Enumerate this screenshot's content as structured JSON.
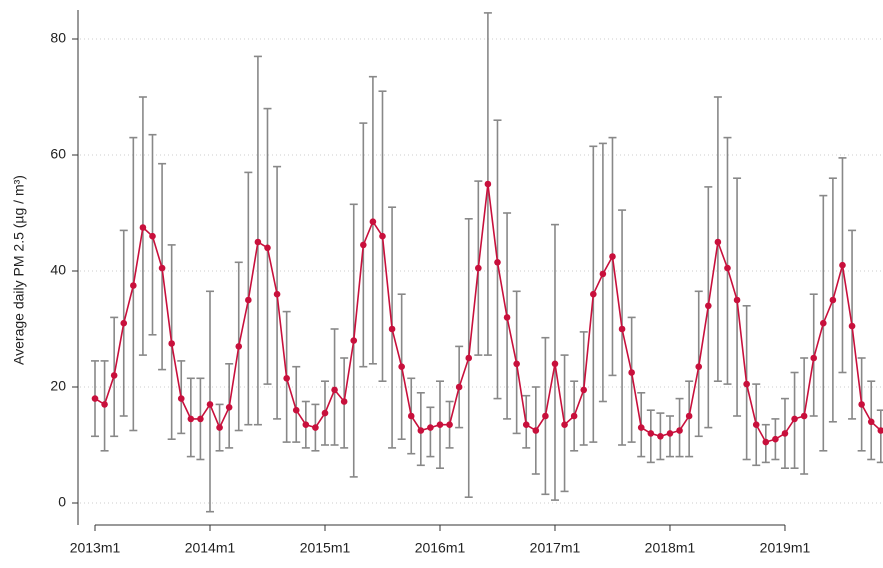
{
  "chart_data": {
    "type": "line",
    "y_label": "Average daily PM 2.5 (µg / m³)",
    "categories": [
      "2013m1",
      null,
      null,
      null,
      null,
      null,
      null,
      null,
      null,
      null,
      null,
      null,
      "2014m1",
      null,
      null,
      null,
      null,
      null,
      null,
      null,
      null,
      null,
      null,
      null,
      "2015m1",
      null,
      null,
      null,
      null,
      null,
      null,
      null,
      null,
      null,
      null,
      null,
      "2016m1",
      null,
      null,
      null,
      null,
      null,
      null,
      null,
      null,
      null,
      null,
      null,
      "2017m1",
      null,
      null,
      null,
      null,
      null,
      null,
      null,
      null,
      null,
      null,
      null,
      "2018m1",
      null,
      null,
      null,
      null,
      null,
      null,
      null,
      null,
      null,
      null,
      null,
      "2019m1",
      null,
      null,
      null,
      null,
      null,
      null,
      null,
      null,
      null,
      null
    ],
    "values": [
      18,
      17,
      22,
      31,
      37.5,
      47.5,
      46,
      40.5,
      27.5,
      18,
      14.5,
      14.5,
      17,
      13,
      16.5,
      27,
      35,
      45,
      44,
      36,
      21.5,
      16,
      13.5,
      13,
      15.5,
      19.5,
      17.5,
      28,
      44.5,
      48.5,
      46,
      30,
      23.5,
      15,
      12.5,
      13,
      13.5,
      13.5,
      20,
      25,
      40.5,
      55,
      41.5,
      32,
      24,
      13.5,
      12.5,
      15,
      24,
      13.5,
      15,
      19.5,
      36,
      39.5,
      42.5,
      30,
      22.5,
      13,
      12,
      11.5,
      12,
      12.5,
      15,
      23.5,
      34,
      45,
      40.5,
      35,
      20.5,
      13.5,
      10.5,
      11,
      12,
      14.5,
      15,
      25,
      31,
      35,
      41,
      30.5,
      17,
      14,
      12.5
    ],
    "error_low": [
      11.5,
      9,
      11.5,
      15,
      12.5,
      25.5,
      29,
      23,
      11,
      12,
      8,
      7.5,
      -1.5,
      9,
      9.5,
      12.5,
      13.5,
      13.5,
      20.5,
      14.5,
      10.5,
      10.5,
      9.5,
      9,
      10,
      10,
      9.5,
      4.5,
      23.5,
      24,
      21,
      9.5,
      11,
      8.5,
      6.5,
      8,
      6,
      9.5,
      13,
      1,
      25.5,
      25.5,
      18,
      14.5,
      12,
      9.5,
      5,
      1.5,
      0.5,
      2,
      9,
      10,
      10.5,
      17.5,
      22,
      10,
      10.5,
      8,
      7,
      7.5,
      8,
      8,
      8,
      11.5,
      13,
      21,
      20.5,
      15,
      7.5,
      6.5,
      7,
      7.5,
      6,
      6,
      5,
      15,
      9,
      14,
      22.5,
      14.5,
      9,
      7.5,
      7
    ],
    "error_high": [
      24.5,
      24.5,
      32,
      47,
      63,
      70,
      63.5,
      58.5,
      44.5,
      24.5,
      21.5,
      21.5,
      36.5,
      17,
      24,
      41.5,
      57,
      77,
      68,
      58,
      33,
      23.5,
      17.5,
      17,
      21,
      30,
      25,
      51.5,
      65.5,
      73.5,
      71,
      51,
      36,
      21.5,
      19,
      16.5,
      21,
      17.5,
      27,
      49,
      55.5,
      84.5,
      66,
      50,
      36.5,
      18.5,
      20,
      28.5,
      48,
      25.5,
      21,
      29.5,
      61.5,
      62,
      63,
      50.5,
      32,
      19,
      16,
      15.5,
      15,
      18,
      21,
      36.5,
      54.5,
      70,
      63,
      56,
      34,
      20.5,
      13.5,
      14.5,
      18,
      22.5,
      25,
      36,
      53,
      56,
      59.5,
      47,
      25,
      21,
      16
    ],
    "color": "#c8103c",
    "error_color": "#888888",
    "ylim": [
      -3,
      85
    ],
    "yticks": [
      0,
      20,
      40,
      60,
      80
    ],
    "grid": true
  }
}
